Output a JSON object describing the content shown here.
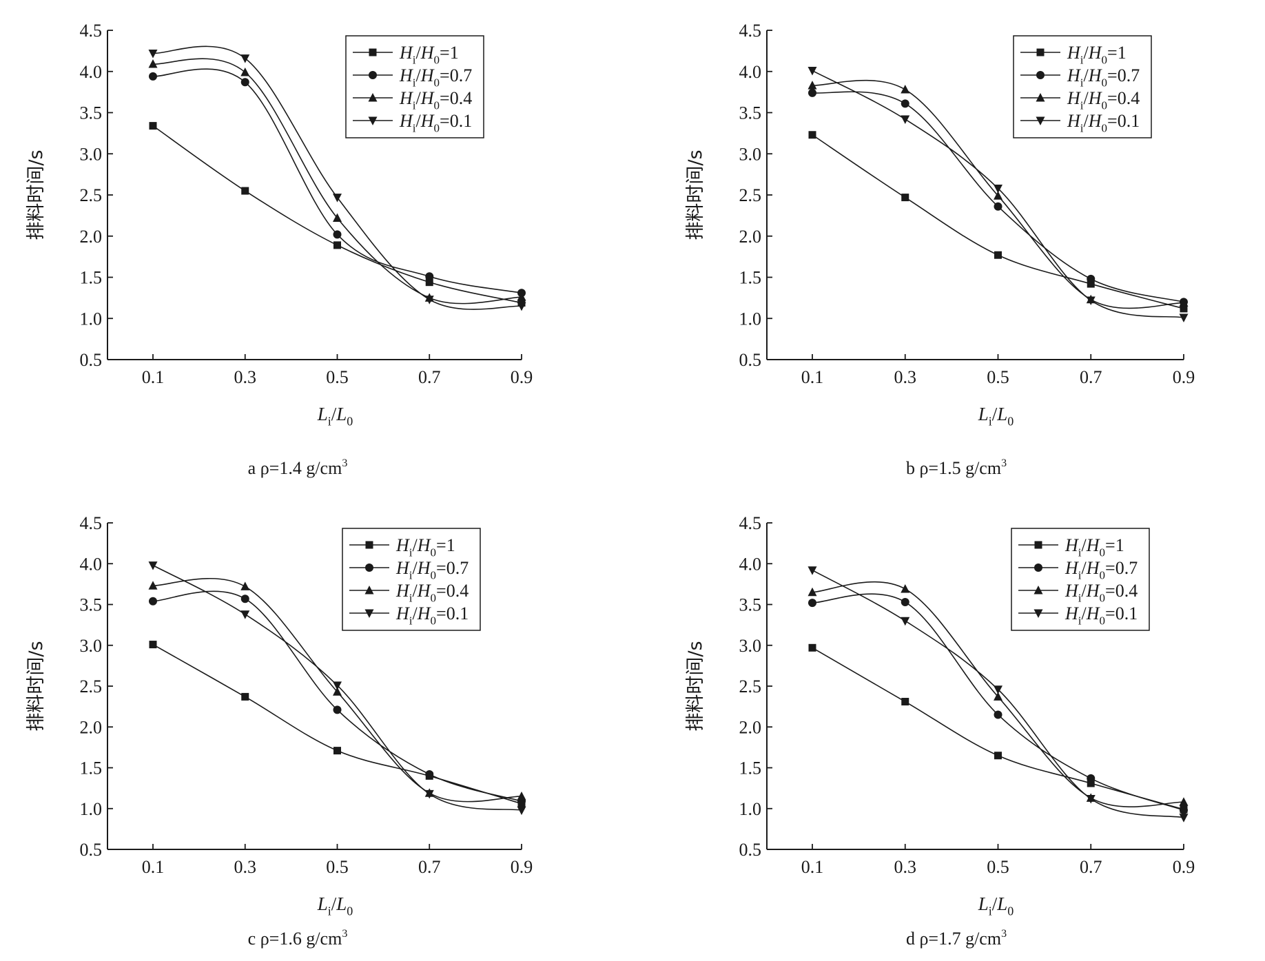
{
  "figure": {
    "background": "#ffffff",
    "line_color": "#1a1a1a"
  },
  "chart_data": [
    {
      "type": "line",
      "caption": "a ρ=1.4 g/cm",
      "caption_sup": "3",
      "xlabel": "L_i/L_0",
      "ylabel": "排料时间/s",
      "x": [
        0.1,
        0.3,
        0.5,
        0.7,
        0.9
      ],
      "x_ticks": [
        "0.1",
        "0.3",
        "0.5",
        "0.7",
        "0.9"
      ],
      "y_ticks": [
        "0.5",
        "1.0",
        "1.5",
        "2.0",
        "2.5",
        "3.0",
        "3.5",
        "4.0",
        "4.5"
      ],
      "ylim": [
        0.5,
        4.5
      ],
      "legend_position": "top-right",
      "series": [
        {
          "name": "H_i/H_0=1",
          "marker": "square",
          "values": [
            3.34,
            2.55,
            1.89,
            1.44,
            1.19
          ]
        },
        {
          "name": "H_i/H_0=0.7",
          "marker": "circle",
          "values": [
            3.94,
            3.87,
            2.02,
            1.51,
            1.31
          ]
        },
        {
          "name": "H_i/H_0=0.4",
          "marker": "triangle-up",
          "values": [
            4.09,
            3.99,
            2.22,
            1.25,
            1.26
          ]
        },
        {
          "name": "H_i/H_0=0.1",
          "marker": "triangle-down",
          "values": [
            4.22,
            4.16,
            2.47,
            1.23,
            1.15
          ]
        }
      ]
    },
    {
      "type": "line",
      "caption": "b ρ=1.5 g/cm",
      "caption_sup": "3",
      "xlabel": "L_i/L_0",
      "ylabel": "排料时间/s",
      "x": [
        0.1,
        0.3,
        0.5,
        0.7,
        0.9
      ],
      "x_ticks": [
        "0.1",
        "0.3",
        "0.5",
        "0.7",
        "0.9"
      ],
      "y_ticks": [
        "0.5",
        "1.0",
        "1.5",
        "2.0",
        "2.5",
        "3.0",
        "3.5",
        "4.0",
        "4.5"
      ],
      "ylim": [
        0.5,
        4.5
      ],
      "legend_position": "top-right",
      "series": [
        {
          "name": "H_i/H_0=1",
          "marker": "square",
          "values": [
            3.23,
            2.47,
            1.77,
            1.42,
            1.12
          ]
        },
        {
          "name": "H_i/H_0=0.7",
          "marker": "circle",
          "values": [
            3.74,
            3.61,
            2.36,
            1.48,
            1.2
          ]
        },
        {
          "name": "H_i/H_0=0.4",
          "marker": "triangle-up",
          "values": [
            3.83,
            3.78,
            2.49,
            1.23,
            1.19
          ]
        },
        {
          "name": "H_i/H_0=0.1",
          "marker": "triangle-down",
          "values": [
            4.01,
            3.42,
            2.58,
            1.22,
            1.01
          ]
        }
      ]
    },
    {
      "type": "line",
      "caption": "c ρ=1.6 g/cm",
      "caption_sup": "3",
      "xlabel": "L_i/L_0",
      "ylabel": "排料时间/s",
      "x": [
        0.1,
        0.3,
        0.5,
        0.7,
        0.9
      ],
      "x_ticks": [
        "0.1",
        "0.3",
        "0.5",
        "0.7",
        "0.9"
      ],
      "y_ticks": [
        "0.5",
        "1.0",
        "1.5",
        "2.0",
        "2.5",
        "3.0",
        "3.5",
        "4.0",
        "4.5"
      ],
      "ylim": [
        0.5,
        4.5
      ],
      "legend_position": "top-right",
      "series": [
        {
          "name": "H_i/H_0=1",
          "marker": "square",
          "values": [
            3.01,
            2.37,
            1.71,
            1.4,
            1.06
          ]
        },
        {
          "name": "H_i/H_0=0.7",
          "marker": "circle",
          "values": [
            3.54,
            3.57,
            2.21,
            1.42,
            1.09
          ]
        },
        {
          "name": "H_i/H_0=0.4",
          "marker": "triangle-up",
          "values": [
            3.73,
            3.72,
            2.43,
            1.19,
            1.15
          ]
        },
        {
          "name": "H_i/H_0=0.1",
          "marker": "triangle-down",
          "values": [
            3.98,
            3.38,
            2.51,
            1.18,
            0.98
          ]
        }
      ]
    },
    {
      "type": "line",
      "caption": "d ρ=1.7 g/cm",
      "caption_sup": "3",
      "xlabel": "L_i/L_0",
      "ylabel": "排料时间/s",
      "x": [
        0.1,
        0.3,
        0.5,
        0.7,
        0.9
      ],
      "x_ticks": [
        "0.1",
        "0.3",
        "0.5",
        "0.7",
        "0.9"
      ],
      "y_ticks": [
        "0.5",
        "1.0",
        "1.5",
        "2.0",
        "2.5",
        "3.0",
        "3.5",
        "4.0",
        "4.5"
      ],
      "ylim": [
        0.5,
        4.5
      ],
      "legend_position": "top-right",
      "series": [
        {
          "name": "H_i/H_0=1",
          "marker": "square",
          "values": [
            2.97,
            2.31,
            1.65,
            1.31,
            0.99
          ]
        },
        {
          "name": "H_i/H_0=0.7",
          "marker": "circle",
          "values": [
            3.52,
            3.53,
            2.15,
            1.37,
            0.98
          ]
        },
        {
          "name": "H_i/H_0=0.4",
          "marker": "triangle-up",
          "values": [
            3.65,
            3.69,
            2.37,
            1.13,
            1.08
          ]
        },
        {
          "name": "H_i/H_0=0.1",
          "marker": "triangle-down",
          "values": [
            3.92,
            3.3,
            2.46,
            1.12,
            0.89
          ]
        }
      ]
    }
  ]
}
